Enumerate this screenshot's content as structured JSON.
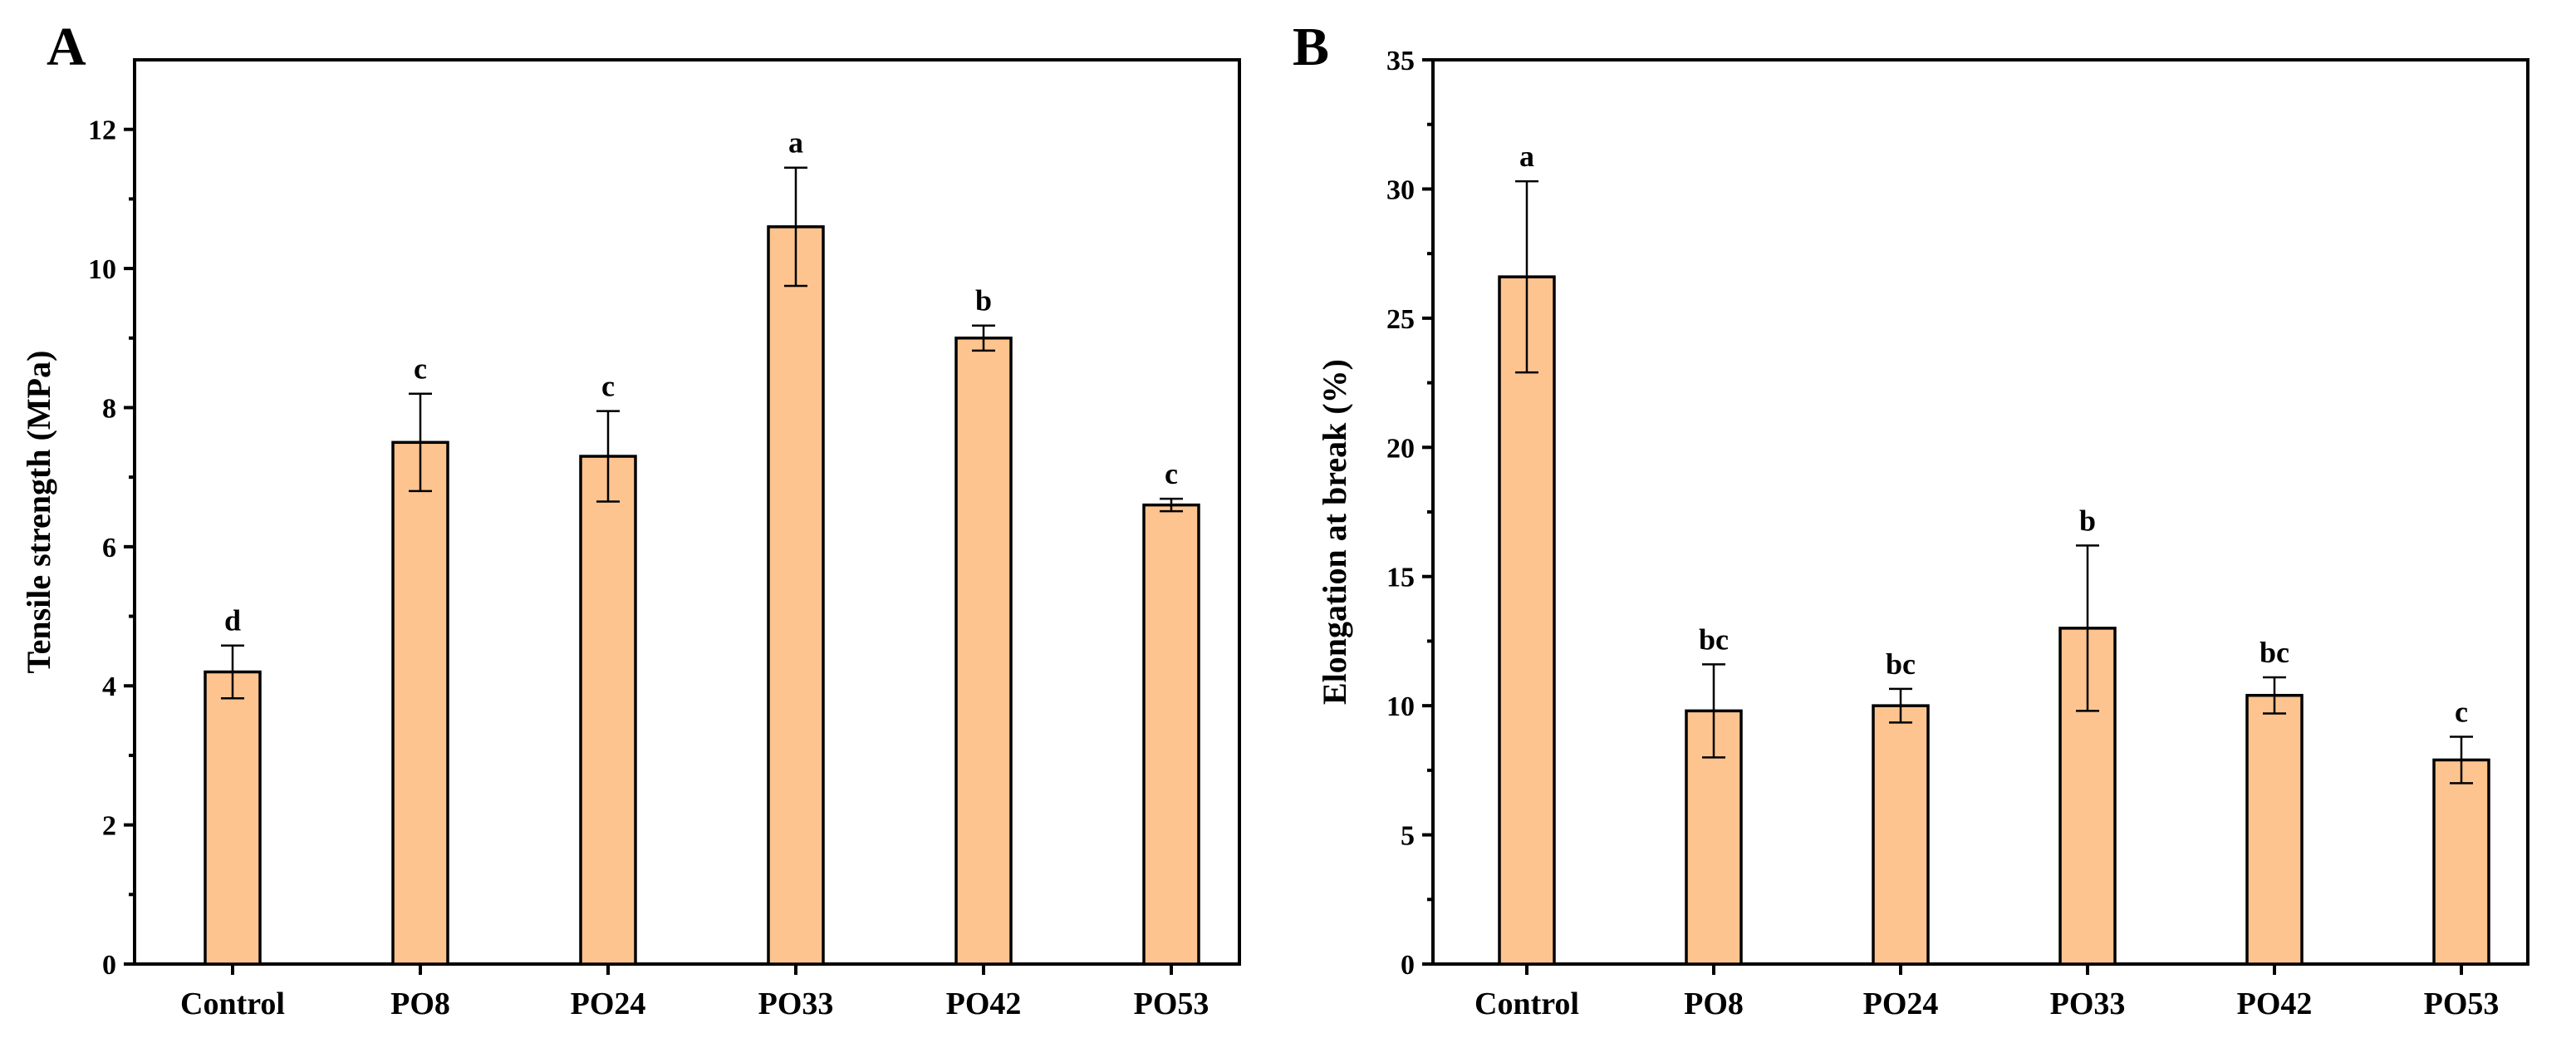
{
  "chart_data": [
    {
      "type": "bar",
      "panel": "A",
      "title": "",
      "xlabel": "",
      "ylabel": "Tensile strength (MPa)",
      "categories": [
        "Control",
        "PO8",
        "PO24",
        "PO33",
        "PO42",
        "PO53"
      ],
      "values": [
        4.2,
        7.5,
        7.3,
        10.6,
        9.0,
        6.6
      ],
      "errors": [
        0.38,
        0.7,
        0.65,
        0.85,
        0.18,
        0.09
      ],
      "significance": [
        "d",
        "c",
        "c",
        "a",
        "b",
        "c"
      ],
      "ylim": [
        0,
        13
      ],
      "yticks": [
        0,
        2,
        4,
        6,
        8,
        10,
        12
      ],
      "bar_color": "#FDC48F"
    },
    {
      "type": "bar",
      "panel": "B",
      "title": "",
      "xlabel": "",
      "ylabel": "Elongation at break (%)",
      "categories": [
        "Control",
        "PO8",
        "PO24",
        "PO33",
        "PO42",
        "PO53"
      ],
      "values": [
        26.6,
        9.8,
        10.0,
        13.0,
        10.4,
        7.9
      ],
      "errors": [
        3.7,
        1.8,
        0.65,
        3.2,
        0.7,
        0.9
      ],
      "significance": [
        "a",
        "bc",
        "bc",
        "b",
        "bc",
        "c"
      ],
      "ylim": [
        0,
        35
      ],
      "yticks": [
        0,
        5,
        10,
        15,
        20,
        25,
        30,
        35
      ],
      "bar_color": "#FDC48F"
    }
  ]
}
